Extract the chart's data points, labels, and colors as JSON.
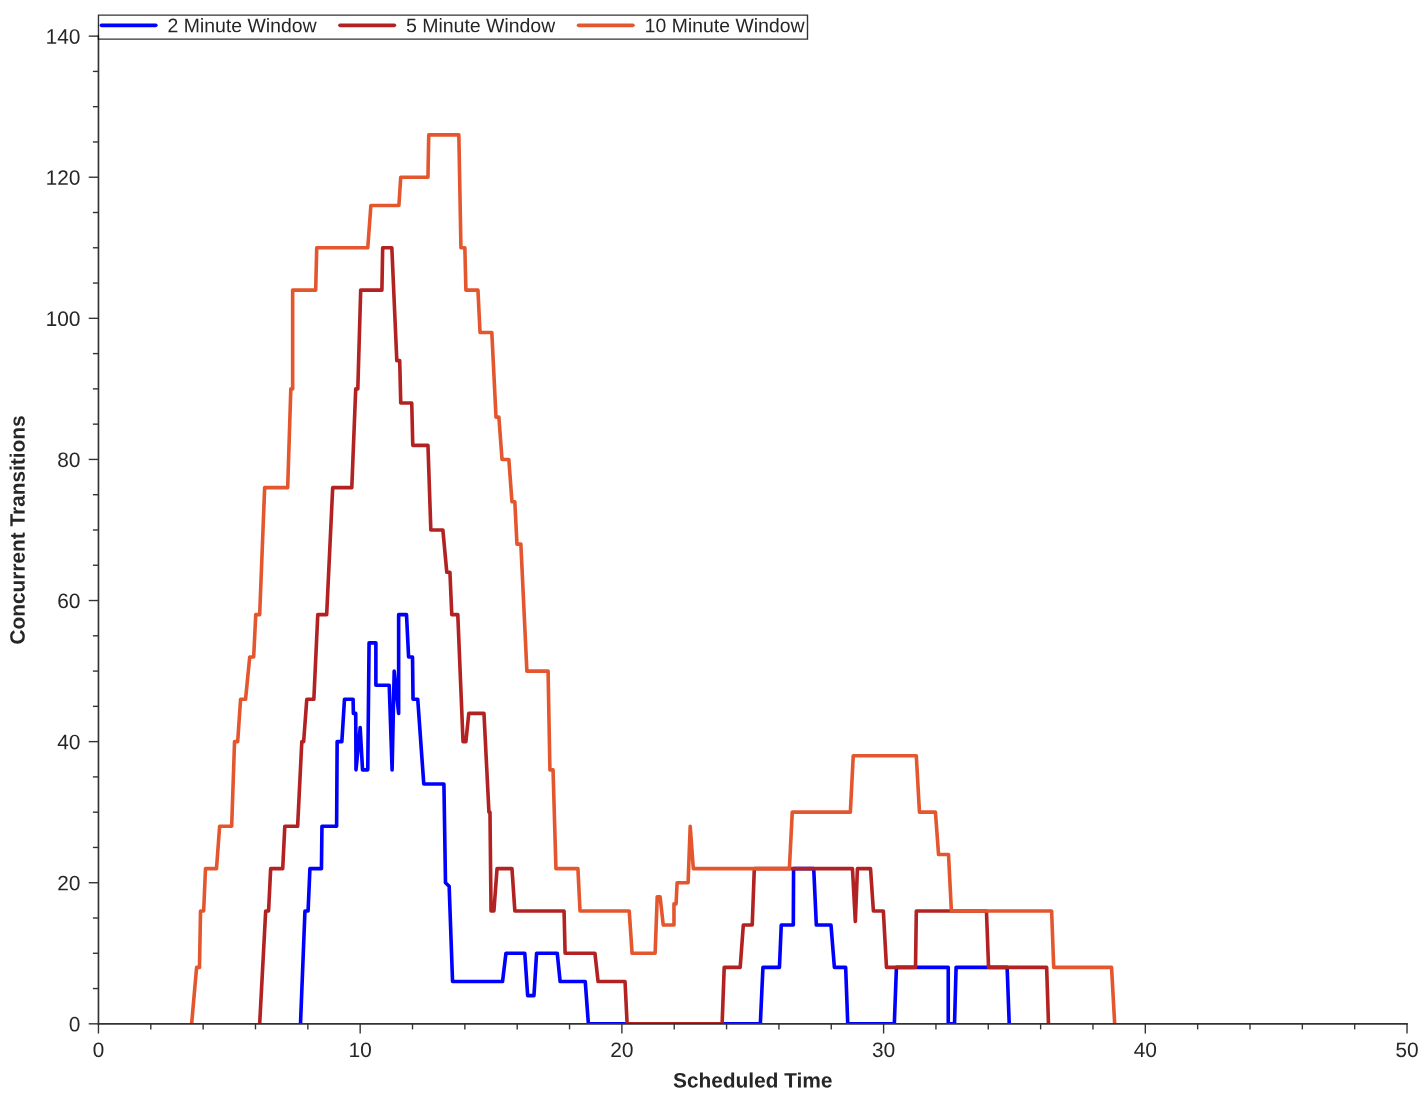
{
  "chart_data": {
    "type": "line",
    "xlabel": "Scheduled Time",
    "ylabel": "Concurrent Transitions",
    "legend": "top",
    "grid": false,
    "marker": "none",
    "line_style": "solid",
    "xlim": [
      0,
      50
    ],
    "ylim": [
      0,
      140
    ],
    "xticks": [
      0,
      {
        "value": 2,
        "label": null
      },
      {
        "value": 4,
        "label": null
      },
      {
        "value": 6,
        "label": null
      },
      {
        "value": 8,
        "label": null
      },
      10,
      {
        "value": 12,
        "label": null
      },
      {
        "value": 14,
        "label": null
      },
      {
        "value": 16,
        "label": null
      },
      {
        "value": 18,
        "label": null
      },
      20,
      {
        "value": 22,
        "label": null
      },
      {
        "value": 24,
        "label": null
      },
      {
        "value": 26,
        "label": null
      },
      {
        "value": 28,
        "label": null
      },
      30,
      {
        "value": 32,
        "label": null
      },
      {
        "value": 34,
        "label": null
      },
      {
        "value": 36,
        "label": null
      },
      {
        "value": 38,
        "label": null
      },
      40,
      {
        "value": 42,
        "label": null
      },
      {
        "value": 44,
        "label": null
      },
      {
        "value": 46,
        "label": null
      },
      {
        "value": 48,
        "label": null
      },
      50
    ],
    "yticks": [
      0,
      {
        "value": 5,
        "label": null
      },
      {
        "value": 10,
        "label": null
      },
      {
        "value": 15,
        "label": null
      },
      20,
      {
        "value": 25,
        "label": null
      },
      {
        "value": 30,
        "label": null
      },
      {
        "value": 35,
        "label": null
      },
      40,
      {
        "value": 45,
        "label": null
      },
      {
        "value": 50,
        "label": null
      },
      {
        "value": 55,
        "label": null
      },
      60,
      {
        "value": 65,
        "label": null
      },
      {
        "value": 70,
        "label": null
      },
      {
        "value": 75,
        "label": null
      },
      80,
      {
        "value": 85,
        "label": null
      },
      {
        "value": 90,
        "label": null
      },
      {
        "value": 95,
        "label": null
      },
      100,
      {
        "value": 105,
        "label": null
      },
      {
        "value": 110,
        "label": null
      },
      {
        "value": 115,
        "label": null
      },
      120,
      {
        "value": 125,
        "label": null
      },
      {
        "value": 130,
        "label": null
      },
      {
        "value": 135,
        "label": null
      },
      140
    ],
    "series": [
      {
        "name": "2 Minute Window",
        "color": "#0000ff",
        "x": [
          7.72,
          7.89,
          8.01,
          8.08,
          8.52,
          8.54,
          9.1,
          9.12,
          9.3,
          9.4,
          9.73,
          9.74,
          9.83,
          9.84,
          10.0,
          10.09,
          10.29,
          10.34,
          10.6,
          10.6,
          11.11,
          11.22,
          11.3,
          11.47,
          11.47,
          11.77,
          11.85,
          12.0,
          12.02,
          12.2,
          12.43,
          13.2,
          13.26,
          13.4,
          13.53,
          15.44,
          15.57,
          16.29,
          16.4,
          16.64,
          16.74,
          17.53,
          17.64,
          18.6,
          18.72,
          25.29,
          25.39,
          26.02,
          26.09,
          26.55,
          26.56,
          27.33,
          27.43,
          27.99,
          28.12,
          28.55,
          28.63,
          30.41,
          30.49,
          32.47,
          32.47,
          32.71,
          32.77,
          34.72,
          34.8
        ],
        "values": [
          0,
          16,
          16,
          22,
          22,
          28,
          28,
          40,
          40,
          46,
          46,
          44,
          44,
          36,
          42,
          36,
          36,
          54,
          54,
          48,
          48,
          36,
          50,
          44,
          58,
          58,
          52,
          52,
          46,
          46,
          34,
          34,
          20,
          19.5,
          6,
          6,
          10,
          10,
          4,
          4,
          10,
          10,
          6,
          6,
          0,
          0,
          8,
          8,
          14,
          14,
          22,
          22,
          14,
          14,
          8,
          8,
          0,
          0,
          8,
          8,
          0,
          0,
          8,
          8,
          0
        ]
      },
      {
        "name": "5 Minute Window",
        "color": "#b22222",
        "x": [
          6.16,
          6.39,
          6.5,
          6.58,
          7.04,
          7.12,
          7.61,
          7.77,
          7.84,
          7.96,
          8.23,
          8.38,
          8.72,
          8.95,
          9.68,
          9.83,
          9.91,
          10.02,
          10.83,
          10.86,
          11.21,
          11.4,
          11.51,
          11.55,
          11.97,
          12.01,
          12.59,
          12.7,
          13.16,
          13.31,
          13.43,
          13.5,
          13.73,
          13.93,
          14.04,
          14.15,
          14.73,
          14.92,
          14.96,
          15.0,
          15.11,
          15.23,
          15.8,
          15.91,
          17.79,
          17.83,
          18.97,
          19.09,
          20.12,
          20.2,
          23.83,
          23.91,
          24.52,
          24.64,
          24.98,
          25.06,
          28.81,
          28.92,
          29.0,
          29.5,
          29.61,
          29.99,
          30.11,
          31.22,
          31.25,
          33.93,
          34.01,
          36.23,
          36.3
        ],
        "values": [
          0,
          16,
          16,
          22,
          22,
          28,
          28,
          40,
          40,
          46,
          46,
          58,
          58,
          76,
          76,
          90,
          90,
          104,
          104,
          110,
          110,
          94,
          94,
          88,
          88,
          82,
          82,
          70,
          70,
          64,
          64,
          58,
          58,
          40,
          40,
          44,
          44,
          30,
          30,
          16,
          16,
          22,
          22,
          16,
          16,
          10,
          10,
          6,
          6,
          0,
          0,
          8,
          8,
          14,
          14,
          22,
          22,
          14.5,
          22,
          22,
          16,
          16,
          8,
          8,
          16,
          16,
          8,
          8,
          0
        ]
      },
      {
        "name": "10 Minute Window",
        "color": "#e4572e",
        "x": [
          3.56,
          3.75,
          3.86,
          3.9,
          4.02,
          4.09,
          4.51,
          4.63,
          5.09,
          5.2,
          5.32,
          5.43,
          5.62,
          5.78,
          5.93,
          6.01,
          6.16,
          6.35,
          7.23,
          7.35,
          7.42,
          7.42,
          8.3,
          8.34,
          10.29,
          10.41,
          11.48,
          11.55,
          12.59,
          12.62,
          13.77,
          13.85,
          14.0,
          14.04,
          14.5,
          14.58,
          15.03,
          15.19,
          15.3,
          15.42,
          15.68,
          15.8,
          15.91,
          15.99,
          16.14,
          16.37,
          17.18,
          17.25,
          17.37,
          17.48,
          18.32,
          18.4,
          20.28,
          20.39,
          21.27,
          21.35,
          21.46,
          21.58,
          21.99,
          21.99,
          22.07,
          22.11,
          22.53,
          22.61,
          22.73,
          26.4,
          26.51,
          28.73,
          28.84,
          31.25,
          31.37,
          31.98,
          32.1,
          32.48,
          32.59,
          36.42,
          36.5,
          38.71,
          38.83
        ],
        "values": [
          0,
          8,
          8,
          16,
          16,
          22,
          22,
          28,
          28,
          40,
          40,
          46,
          46,
          52,
          52,
          58,
          58,
          76,
          76,
          90,
          90,
          104,
          104,
          110,
          110,
          116,
          116,
          120,
          120,
          126,
          126,
          110,
          110,
          104,
          104,
          98,
          98,
          86,
          86,
          80,
          80,
          74,
          74,
          68,
          68,
          50,
          50,
          36,
          36,
          22,
          22,
          16,
          16,
          10,
          10,
          18,
          18,
          14,
          14,
          17,
          17,
          20,
          20,
          28,
          22,
          22,
          30,
          30,
          38,
          38,
          30,
          30,
          24,
          24,
          16,
          16,
          8,
          8,
          0
        ]
      }
    ]
  }
}
